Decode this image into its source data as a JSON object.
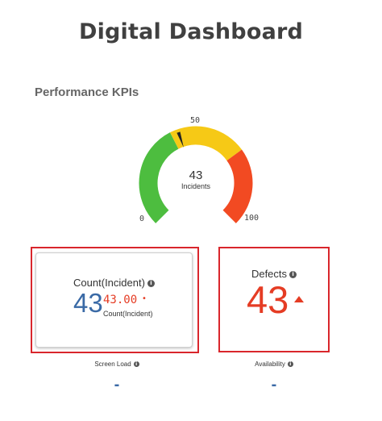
{
  "header": {
    "title": "Digital Dashboard"
  },
  "section": {
    "title": "Performance KPIs"
  },
  "gauge": {
    "value": "43",
    "label": "Incidents",
    "min_label": "0",
    "mid_label": "50",
    "max_label": "100",
    "min": 0,
    "max": 100,
    "needle_value": 43,
    "bands": [
      {
        "from": 0,
        "to": 40,
        "color": "#4dbd3f"
      },
      {
        "from": 40,
        "to": 70,
        "color": "#f6c916"
      },
      {
        "from": 70,
        "to": 100,
        "color": "#f24a22"
      }
    ]
  },
  "kpi_count": {
    "title": "Count(Incident)",
    "main_value": "43",
    "secondary_value": "43.00",
    "secondary_label": "Count(Incident)",
    "main_color": "#3a6aa6",
    "secondary_color": "#e53c24"
  },
  "kpi_defects": {
    "title": "Defects",
    "value": "43",
    "trend": "up-arrow-icon",
    "color": "#e53c24"
  },
  "screen_load": {
    "label": "Screen Load",
    "value": "-"
  },
  "availability": {
    "label": "Availability",
    "value": "-"
  },
  "colors": {
    "highlight_frame": "#d9262c",
    "info_icon": "#555555"
  }
}
